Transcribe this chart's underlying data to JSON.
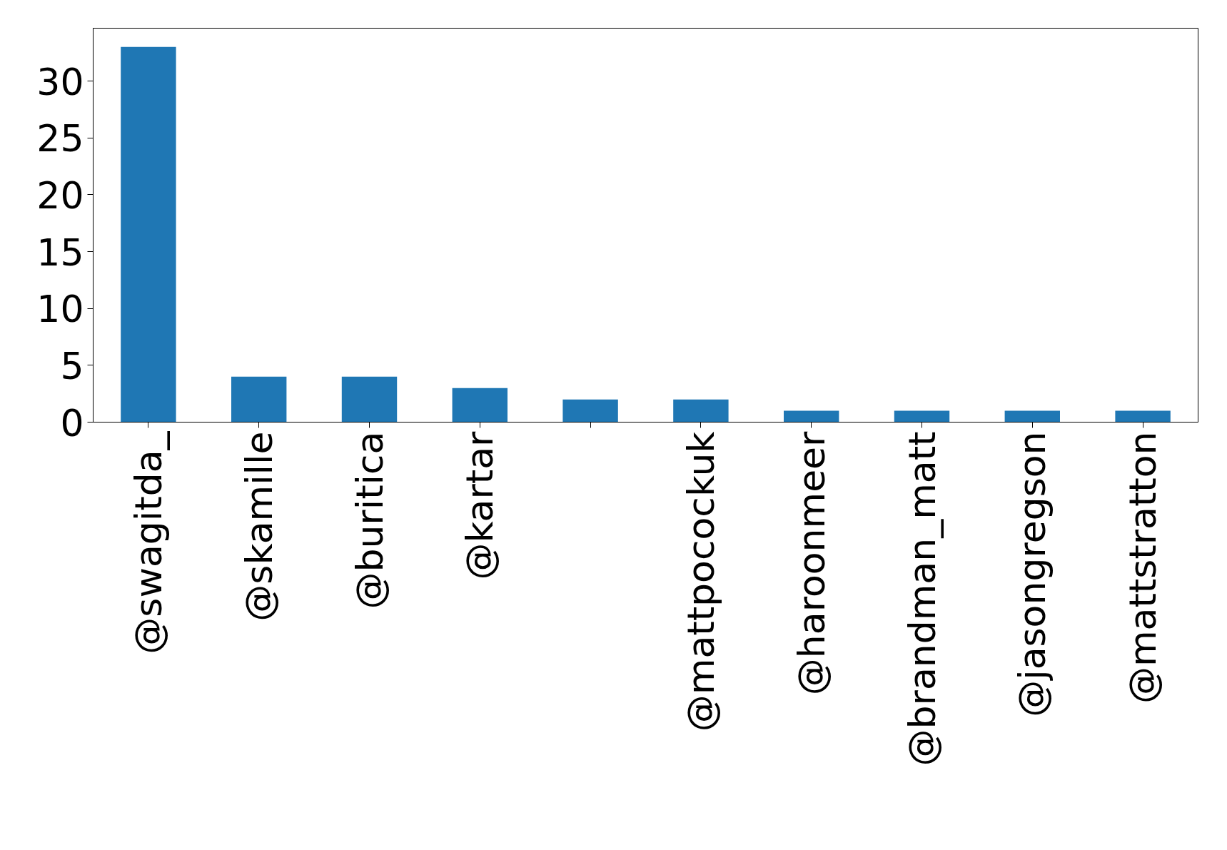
{
  "chart_data": {
    "type": "bar",
    "categories": [
      "@swagitda_",
      "@skamille",
      "@buritica",
      "@kartar",
      null,
      "@mattpocockuk",
      "@haroonmeer",
      "@brandman_matt",
      "@jasongregson",
      "@mattstratton"
    ],
    "values": [
      33,
      4,
      4,
      3,
      2,
      2,
      1,
      1,
      1,
      1
    ],
    "color": "#1f77b4",
    "ylim": [
      0,
      34.65
    ],
    "yticks": [
      0,
      5,
      10,
      15,
      20,
      25,
      30
    ],
    "grid": false
  }
}
